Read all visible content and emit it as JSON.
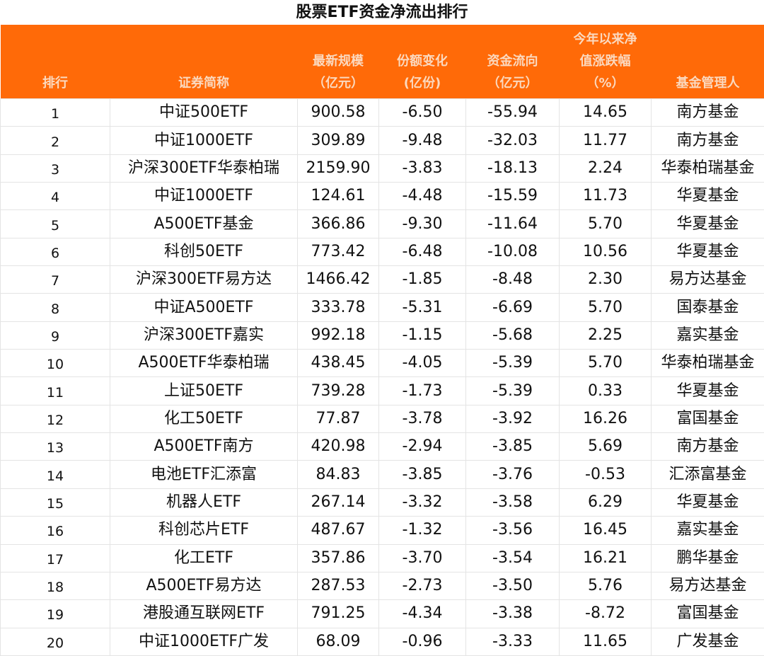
{
  "title": "股票ETF资金净流出排行",
  "colors": {
    "header_bg": "#ff6a08",
    "header_text": "#fbd9bf"
  },
  "headers": [
    [
      "排行"
    ],
    [
      "证券简称"
    ],
    [
      "最新规模",
      "（亿元）"
    ],
    [
      "份额变化",
      "(亿份)"
    ],
    [
      "资金流向",
      "（亿元）"
    ],
    [
      "今年以来净",
      "值涨跌幅",
      "（%）"
    ],
    [
      "基金管理人"
    ]
  ],
  "rows": [
    [
      "1",
      "中证500ETF",
      "900.58",
      "-6.50",
      "-55.94",
      "14.65",
      "南方基金"
    ],
    [
      "2",
      "中证1000ETF",
      "309.89",
      "-9.48",
      "-32.03",
      "11.77",
      "南方基金"
    ],
    [
      "3",
      "沪深300ETF华泰柏瑞",
      "2159.90",
      "-3.83",
      "-18.13",
      "2.24",
      "华泰柏瑞基金"
    ],
    [
      "4",
      "中证1000ETF",
      "124.61",
      "-4.48",
      "-15.59",
      "11.73",
      "华夏基金"
    ],
    [
      "5",
      "A500ETF基金",
      "366.86",
      "-9.30",
      "-11.64",
      "5.70",
      "华夏基金"
    ],
    [
      "6",
      "科创50ETF",
      "773.42",
      "-6.48",
      "-10.08",
      "10.56",
      "华夏基金"
    ],
    [
      "7",
      "沪深300ETF易方达",
      "1466.42",
      "-1.85",
      "-8.48",
      "2.30",
      "易方达基金"
    ],
    [
      "8",
      "中证A500ETF",
      "333.78",
      "-5.31",
      "-6.69",
      "5.70",
      "国泰基金"
    ],
    [
      "9",
      "沪深300ETF嘉实",
      "992.18",
      "-1.15",
      "-5.68",
      "2.25",
      "嘉实基金"
    ],
    [
      "10",
      "A500ETF华泰柏瑞",
      "438.45",
      "-4.05",
      "-5.39",
      "5.70",
      "华泰柏瑞基金"
    ],
    [
      "11",
      "上证50ETF",
      "739.28",
      "-1.73",
      "-5.39",
      "0.33",
      "华夏基金"
    ],
    [
      "12",
      "化工50ETF",
      "77.87",
      "-3.78",
      "-3.92",
      "16.26",
      "富国基金"
    ],
    [
      "13",
      "A500ETF南方",
      "420.98",
      "-2.94",
      "-3.85",
      "5.69",
      "南方基金"
    ],
    [
      "14",
      "电池ETF汇添富",
      "84.83",
      "-3.85",
      "-3.76",
      "-0.53",
      "汇添富基金"
    ],
    [
      "15",
      "机器人ETF",
      "267.14",
      "-3.32",
      "-3.58",
      "6.29",
      "华夏基金"
    ],
    [
      "16",
      "科创芯片ETF",
      "487.67",
      "-1.32",
      "-3.56",
      "16.45",
      "嘉实基金"
    ],
    [
      "17",
      "化工ETF",
      "357.86",
      "-3.70",
      "-3.54",
      "16.21",
      "鹏华基金"
    ],
    [
      "18",
      "A500ETF易方达",
      "287.53",
      "-2.73",
      "-3.50",
      "5.76",
      "易方达基金"
    ],
    [
      "19",
      "港股通互联网ETF",
      "791.25",
      "-4.34",
      "-3.38",
      "-8.72",
      "富国基金"
    ],
    [
      "20",
      "中证1000ETF广发",
      "68.09",
      "-0.96",
      "-3.33",
      "11.65",
      "广发基金"
    ]
  ]
}
